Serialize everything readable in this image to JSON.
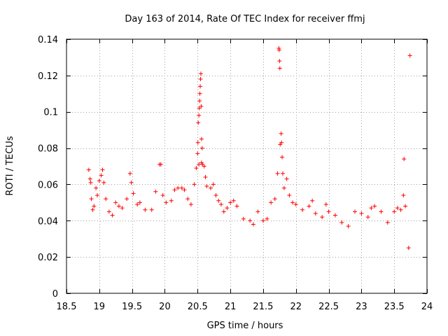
{
  "chart_data": {
    "type": "scatter",
    "title": "Day 163 of 2014, Rate Of TEC Index for receiver ffmj",
    "xlabel": "GPS time / hours",
    "ylabel": "ROTI / TECUs",
    "xlim": [
      18.5,
      24
    ],
    "ylim": [
      0,
      0.14
    ],
    "x_ticks": [
      18.5,
      19,
      19.5,
      20,
      20.5,
      21,
      21.5,
      22,
      22.5,
      23,
      23.5,
      24
    ],
    "x_tick_labels": [
      "18.5",
      "19",
      "19.5",
      "20",
      "20.5",
      "21",
      "21.5",
      "22",
      "22.5",
      "23",
      "23.5",
      "24"
    ],
    "y_ticks": [
      0,
      0.02,
      0.04,
      0.06,
      0.08,
      0.1,
      0.12,
      0.14
    ],
    "y_tick_labels": [
      "0",
      "0.02",
      "0.04",
      "0.06",
      "0.08",
      "0.1",
      "0.12",
      "0.14"
    ],
    "grid": true,
    "marker": "+",
    "color": "#ff0000",
    "series": [
      {
        "name": "ROTI",
        "points": [
          [
            18.84,
            0.068
          ],
          [
            18.86,
            0.063
          ],
          [
            18.87,
            0.061
          ],
          [
            18.88,
            0.052
          ],
          [
            18.9,
            0.046
          ],
          [
            18.92,
            0.048
          ],
          [
            18.95,
            0.058
          ],
          [
            18.97,
            0.054
          ],
          [
            19.0,
            0.062
          ],
          [
            19.03,
            0.065
          ],
          [
            19.05,
            0.068
          ],
          [
            19.07,
            0.061
          ],
          [
            19.1,
            0.052
          ],
          [
            19.15,
            0.045
          ],
          [
            19.2,
            0.043
          ],
          [
            19.25,
            0.05
          ],
          [
            19.3,
            0.048
          ],
          [
            19.35,
            0.047
          ],
          [
            19.42,
            0.052
          ],
          [
            19.47,
            0.066
          ],
          [
            19.49,
            0.061
          ],
          [
            19.52,
            0.055
          ],
          [
            19.58,
            0.049
          ],
          [
            19.62,
            0.05
          ],
          [
            19.7,
            0.046
          ],
          [
            19.8,
            0.046
          ],
          [
            19.86,
            0.056
          ],
          [
            19.92,
            0.071
          ],
          [
            19.94,
            0.071
          ],
          [
            19.97,
            0.054
          ],
          [
            20.02,
            0.05
          ],
          [
            20.1,
            0.051
          ],
          [
            20.15,
            0.057
          ],
          [
            20.2,
            0.058
          ],
          [
            20.26,
            0.058
          ],
          [
            20.3,
            0.057
          ],
          [
            20.35,
            0.052
          ],
          [
            20.4,
            0.049
          ],
          [
            20.45,
            0.06
          ],
          [
            20.48,
            0.069
          ],
          [
            20.5,
            0.077
          ],
          [
            20.505,
            0.083
          ],
          [
            20.51,
            0.094
          ],
          [
            20.52,
            0.098
          ],
          [
            20.525,
            0.102
          ],
          [
            20.53,
            0.106
          ],
          [
            20.535,
            0.11
          ],
          [
            20.54,
            0.114
          ],
          [
            20.545,
            0.118
          ],
          [
            20.55,
            0.121
          ],
          [
            20.555,
            0.103
          ],
          [
            20.56,
            0.085
          ],
          [
            20.57,
            0.08
          ],
          [
            20.575,
            0.071
          ],
          [
            20.52,
            0.071
          ],
          [
            20.56,
            0.072
          ],
          [
            20.6,
            0.07
          ],
          [
            20.62,
            0.064
          ],
          [
            20.64,
            0.059
          ],
          [
            20.7,
            0.058
          ],
          [
            20.74,
            0.06
          ],
          [
            20.78,
            0.054
          ],
          [
            20.82,
            0.051
          ],
          [
            20.86,
            0.049
          ],
          [
            20.9,
            0.045
          ],
          [
            20.95,
            0.047
          ],
          [
            21.0,
            0.05
          ],
          [
            21.05,
            0.051
          ],
          [
            21.1,
            0.048
          ],
          [
            21.2,
            0.041
          ],
          [
            21.3,
            0.04
          ],
          [
            21.35,
            0.038
          ],
          [
            21.42,
            0.045
          ],
          [
            21.5,
            0.04
          ],
          [
            21.56,
            0.041
          ],
          [
            21.62,
            0.05
          ],
          [
            21.68,
            0.052
          ],
          [
            21.72,
            0.066
          ],
          [
            21.74,
            0.135
          ],
          [
            21.745,
            0.134
          ],
          [
            21.75,
            0.128
          ],
          [
            21.755,
            0.124
          ],
          [
            21.76,
            0.082
          ],
          [
            21.775,
            0.088
          ],
          [
            21.78,
            0.083
          ],
          [
            21.79,
            0.075
          ],
          [
            21.8,
            0.066
          ],
          [
            21.82,
            0.058
          ],
          [
            21.86,
            0.063
          ],
          [
            21.9,
            0.054
          ],
          [
            21.95,
            0.05
          ],
          [
            22.0,
            0.049
          ],
          [
            22.1,
            0.046
          ],
          [
            22.2,
            0.048
          ],
          [
            22.25,
            0.051
          ],
          [
            22.3,
            0.044
          ],
          [
            22.4,
            0.042
          ],
          [
            22.46,
            0.049
          ],
          [
            22.5,
            0.045
          ],
          [
            22.6,
            0.043
          ],
          [
            22.7,
            0.039
          ],
          [
            22.8,
            0.037
          ],
          [
            22.9,
            0.045
          ],
          [
            23.0,
            0.044
          ],
          [
            23.1,
            0.042
          ],
          [
            23.15,
            0.047
          ],
          [
            23.2,
            0.048
          ],
          [
            23.3,
            0.045
          ],
          [
            23.4,
            0.039
          ],
          [
            23.5,
            0.045
          ],
          [
            23.55,
            0.047
          ],
          [
            23.6,
            0.046
          ],
          [
            23.64,
            0.054
          ],
          [
            23.65,
            0.074
          ],
          [
            23.67,
            0.048
          ],
          [
            23.72,
            0.025
          ],
          [
            23.74,
            0.131
          ]
        ]
      }
    ]
  }
}
